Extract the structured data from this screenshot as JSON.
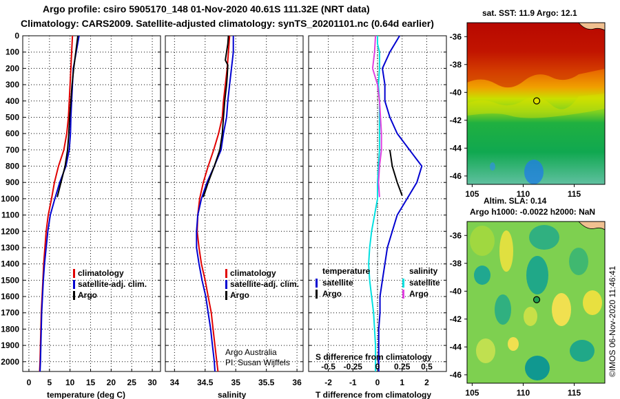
{
  "header": {
    "line1": "Argo profile: csiro 5905170_148 01-Nov-2020 40.61S 111.32E (NRT data)",
    "line2": "Climatology: CARS2009. Satellite-adjusted climatology: synTS_20201101.nc (0.64d earlier)"
  },
  "depth_ticks": [
    "0",
    "100",
    "200",
    "300",
    "400",
    "500",
    "600",
    "700",
    "800",
    "900",
    "1000",
    "1100",
    "1200",
    "1300",
    "1400",
    "1500",
    "1600",
    "1700",
    "1800",
    "1900",
    "2000"
  ],
  "chart_data": [
    {
      "type": "line",
      "xlabel": "temperature (deg C)",
      "xticks": [
        "0",
        "5",
        "10",
        "15",
        "20",
        "25",
        "30"
      ],
      "xlim": [
        -1.5,
        32
      ],
      "ylim": [
        2060,
        0
      ],
      "legend": {
        "placement": "lower-right",
        "entries": [
          "climatology",
          "satellite-adj. clim.",
          "Argo"
        ]
      },
      "series": [
        {
          "name": "climatology",
          "color": "#e00000",
          "points": [
            [
              10.6,
              0
            ],
            [
              10.4,
              100
            ],
            [
              10.2,
              200
            ],
            [
              10.0,
              300
            ],
            [
              9.8,
              400
            ],
            [
              9.6,
              500
            ],
            [
              9.2,
              600
            ],
            [
              8.5,
              700
            ],
            [
              7.2,
              800
            ],
            [
              6.2,
              900
            ],
            [
              5.5,
              1000
            ],
            [
              4.7,
              1100
            ],
            [
              4.2,
              1200
            ],
            [
              3.9,
              1300
            ],
            [
              3.6,
              1400
            ],
            [
              3.4,
              1500
            ],
            [
              3.2,
              1600
            ],
            [
              3.0,
              1700
            ],
            [
              2.9,
              1800
            ],
            [
              2.8,
              1900
            ],
            [
              2.7,
              2000
            ],
            [
              2.6,
              2060
            ]
          ]
        },
        {
          "name": "satellite-adj. clim.",
          "color": "#0000d0",
          "points": [
            [
              12.2,
              0
            ],
            [
              11.5,
              100
            ],
            [
              10.8,
              200
            ],
            [
              10.6,
              300
            ],
            [
              10.4,
              400
            ],
            [
              10.2,
              500
            ],
            [
              10.1,
              600
            ],
            [
              9.8,
              700
            ],
            [
              9.0,
              800
            ],
            [
              7.5,
              900
            ],
            [
              6.3,
              1000
            ],
            [
              5.2,
              1100
            ],
            [
              4.6,
              1200
            ],
            [
              4.2,
              1300
            ],
            [
              3.8,
              1400
            ],
            [
              3.5,
              1500
            ],
            [
              3.3,
              1600
            ],
            [
              3.1,
              1700
            ],
            [
              3.0,
              1800
            ],
            [
              2.9,
              1900
            ],
            [
              2.8,
              2000
            ],
            [
              2.7,
              2060
            ]
          ]
        },
        {
          "name": "Argo",
          "color": "#000000",
          "points": [
            [
              11.9,
              0
            ],
            [
              11.4,
              100
            ],
            [
              10.9,
              200
            ],
            [
              10.5,
              300
            ],
            [
              10.2,
              400
            ],
            [
              9.9,
              500
            ],
            [
              9.7,
              600
            ],
            [
              9.4,
              700
            ],
            [
              8.8,
              800
            ],
            [
              7.8,
              900
            ],
            [
              6.9,
              990
            ]
          ]
        }
      ]
    },
    {
      "type": "line",
      "xlabel": "salinity",
      "xticks": [
        "34",
        "34.5",
        "35",
        "35.5",
        "36"
      ],
      "xlim": [
        33.85,
        36.1
      ],
      "ylim": [
        2060,
        0
      ],
      "legend": {
        "placement": "lower-right",
        "entries": [
          "climatology",
          "satellite-adj. clim.",
          "Argo"
        ]
      },
      "annotation": [
        "Argo Australia",
        "PI: Susan Wijffels"
      ],
      "series": [
        {
          "name": "climatology",
          "color": "#e00000",
          "points": [
            [
              34.9,
              0
            ],
            [
              34.88,
              100
            ],
            [
              34.86,
              200
            ],
            [
              34.83,
              300
            ],
            [
              34.8,
              400
            ],
            [
              34.78,
              500
            ],
            [
              34.72,
              600
            ],
            [
              34.64,
              700
            ],
            [
              34.55,
              800
            ],
            [
              34.47,
              900
            ],
            [
              34.41,
              1000
            ],
            [
              34.38,
              1100
            ],
            [
              34.37,
              1200
            ],
            [
              34.4,
              1300
            ],
            [
              34.44,
              1400
            ],
            [
              34.5,
              1500
            ],
            [
              34.55,
              1600
            ],
            [
              34.6,
              1700
            ],
            [
              34.63,
              1800
            ],
            [
              34.66,
              1900
            ],
            [
              34.69,
              2000
            ],
            [
              34.71,
              2060
            ]
          ]
        },
        {
          "name": "satellite-adj. clim.",
          "color": "#0000d0",
          "points": [
            [
              34.96,
              0
            ],
            [
              34.96,
              100
            ],
            [
              34.93,
              200
            ],
            [
              34.9,
              300
            ],
            [
              34.87,
              400
            ],
            [
              34.85,
              500
            ],
            [
              34.8,
              600
            ],
            [
              34.76,
              700
            ],
            [
              34.65,
              800
            ],
            [
              34.53,
              900
            ],
            [
              34.44,
              1000
            ],
            [
              34.38,
              1100
            ],
            [
              34.36,
              1200
            ],
            [
              34.36,
              1300
            ],
            [
              34.4,
              1400
            ],
            [
              34.45,
              1500
            ],
            [
              34.51,
              1600
            ],
            [
              34.55,
              1700
            ],
            [
              34.59,
              1800
            ],
            [
              34.62,
              1900
            ],
            [
              34.65,
              2000
            ],
            [
              34.66,
              2060
            ]
          ]
        },
        {
          "name": "Argo",
          "color": "#000000",
          "points": [
            [
              34.88,
              0
            ],
            [
              34.87,
              50
            ],
            [
              34.85,
              100
            ],
            [
              34.83,
              150
            ],
            [
              34.87,
              180
            ],
            [
              34.86,
              250
            ],
            [
              34.85,
              300
            ],
            [
              34.82,
              400
            ],
            [
              34.8,
              500
            ],
            [
              34.78,
              600
            ],
            [
              34.74,
              700
            ],
            [
              34.65,
              800
            ],
            [
              34.55,
              900
            ],
            [
              34.47,
              990
            ]
          ]
        }
      ]
    },
    {
      "type": "line",
      "xlabel": "T difference from climatology",
      "top_axis_label": "S difference from climatology",
      "xticks": [
        "-2",
        "-1",
        "0",
        "1",
        "2"
      ],
      "top_ticks": [
        "-0.5",
        "-0.25",
        "0",
        "0.25",
        "0.5"
      ],
      "xlim": [
        -2.8,
        2.8
      ],
      "top_xlim": [
        -0.7,
        0.7
      ],
      "ylim": [
        2060,
        0
      ],
      "legend": {
        "placement": "lower-center",
        "groups": [
          {
            "heading": "temperature",
            "entries": [
              "satellite",
              "Argo"
            ]
          },
          {
            "heading": "salinity",
            "entries": [
              "satellite",
              "Argo"
            ]
          }
        ]
      },
      "series": [
        {
          "name": "temperature satellite",
          "color": "#0000d0",
          "axis": "bottom",
          "points": [
            [
              0.9,
              0
            ],
            [
              0.5,
              100
            ],
            [
              0.2,
              200
            ],
            [
              0.3,
              300
            ],
            [
              0.3,
              400
            ],
            [
              0.5,
              500
            ],
            [
              0.8,
              600
            ],
            [
              1.3,
              700
            ],
            [
              1.8,
              800
            ],
            [
              1.6,
              900
            ],
            [
              1.2,
              1000
            ],
            [
              0.8,
              1100
            ],
            [
              0.6,
              1200
            ],
            [
              0.4,
              1300
            ],
            [
              0.3,
              1400
            ],
            [
              0.2,
              1500
            ],
            [
              0.1,
              1600
            ],
            [
              0.1,
              1700
            ],
            [
              0.05,
              1800
            ],
            [
              0.05,
              1900
            ],
            [
              0.05,
              2000
            ],
            [
              0.05,
              2060
            ]
          ]
        },
        {
          "name": "temperature Argo",
          "color": "#000000",
          "axis": "bottom",
          "points": [
            [
              0.5,
              700
            ],
            [
              0.6,
              800
            ],
            [
              0.8,
              900
            ],
            [
              1.0,
              980
            ]
          ]
        },
        {
          "name": "salinity satellite",
          "color": "#00e0e0",
          "axis": "top",
          "points": [
            [
              0.0,
              0
            ],
            [
              0.0,
              50
            ],
            [
              0.02,
              100
            ],
            [
              0.02,
              200
            ],
            [
              0.01,
              300
            ],
            [
              0.02,
              400
            ],
            [
              0.02,
              500
            ],
            [
              0.02,
              600
            ],
            [
              0.02,
              700
            ],
            [
              0.01,
              800
            ],
            [
              0.0,
              900
            ],
            [
              0.0,
              1000
            ],
            [
              -0.03,
              1100
            ],
            [
              -0.06,
              1200
            ],
            [
              -0.08,
              1300
            ],
            [
              -0.09,
              1400
            ],
            [
              -0.08,
              1500
            ],
            [
              -0.06,
              1600
            ],
            [
              -0.04,
              1700
            ],
            [
              -0.03,
              1800
            ],
            [
              -0.02,
              1900
            ],
            [
              -0.02,
              2000
            ],
            [
              -0.02,
              2060
            ]
          ]
        },
        {
          "name": "salinity Argo",
          "color": "#e040e0",
          "axis": "top",
          "points": [
            [
              -0.02,
              0
            ],
            [
              -0.03,
              100
            ],
            [
              -0.05,
              200
            ],
            [
              0.0,
              300
            ],
            [
              0.02,
              400
            ],
            [
              0.03,
              500
            ],
            [
              0.04,
              600
            ],
            [
              0.04,
              700
            ],
            [
              0.02,
              800
            ],
            [
              0.01,
              900
            ],
            [
              0.02,
              990
            ]
          ]
        }
      ]
    }
  ],
  "maps": {
    "sst": {
      "title": "sat. SST: 11.9 Argo: 12.1",
      "yticks": [
        "-36",
        "-38",
        "-40",
        "-42",
        "-44",
        "-46"
      ],
      "xticks": [
        "105",
        "110",
        "115"
      ],
      "profile_lat": -40.61,
      "profile_lon": 111.32
    },
    "sla": {
      "title1": "Altim. SLA: 0.14",
      "title2": "Argo h1000: -0.0022 h2000: NaN",
      "yticks": [
        "-36",
        "-38",
        "-40",
        "-42",
        "-44",
        "-46"
      ],
      "xticks": [
        "105",
        "110",
        "115"
      ],
      "profile_lat": -40.61,
      "profile_lon": 111.32
    }
  },
  "stamp": "©IMOS 06-Nov-2020 11:46:41"
}
